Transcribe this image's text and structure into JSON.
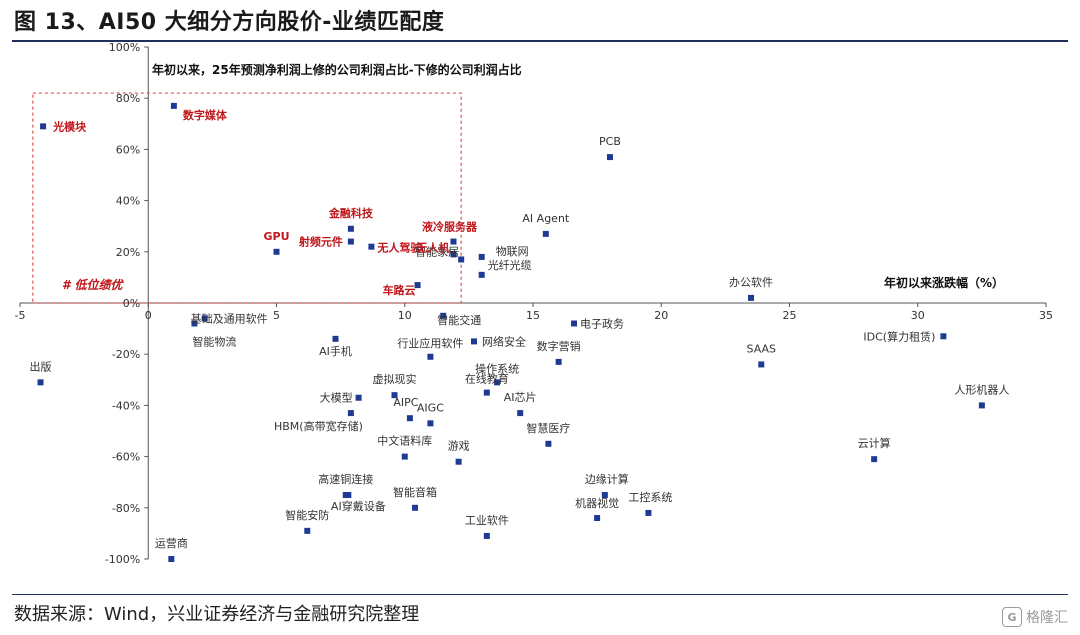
{
  "figure": {
    "title": "图 13、AI50 大细分方向股价-业绩匹配度",
    "source": "数据来源：Wind，兴业证券经济与金融研究院整理",
    "watermark": "格隆汇",
    "watermark_icon": "glh-logo-icon"
  },
  "chart_data": {
    "type": "scatter",
    "title": "",
    "ylabel": "年初以来，25年预测净利润上修的公司利润占比-下修的公司利润占比",
    "xlabel": "年初以来涨跌幅（%）",
    "xlim": [
      -5,
      35
    ],
    "ylim": [
      -100,
      100
    ],
    "xticks": [
      "-5",
      "0",
      "5",
      "10",
      "15",
      "20",
      "25",
      "30",
      "35"
    ],
    "yticks": [
      "100%",
      "80%",
      "60%",
      "40%",
      "20%",
      "0%",
      "-20%",
      "-40%",
      "-60%",
      "-80%",
      "-100%"
    ],
    "grid": false,
    "highlight_box": {
      "x": [
        -4.5,
        12.2
      ],
      "y": [
        0,
        82
      ],
      "label": "# 低位绩优",
      "color": "#e05050"
    },
    "colors": {
      "marker": "#1f3a93",
      "highlight_label": "#c0171b",
      "normal_label": "#333333"
    },
    "points": [
      {
        "name": "光模块",
        "x": -4.1,
        "y": 69,
        "highlight": true
      },
      {
        "name": "数字媒体",
        "x": 1.0,
        "y": 77,
        "highlight": true
      },
      {
        "name": "PCB",
        "x": 18.0,
        "y": 57,
        "highlight": false
      },
      {
        "name": "金融科技",
        "x": 7.9,
        "y": 29,
        "highlight": true
      },
      {
        "name": "GPU",
        "x": 5.0,
        "y": 20,
        "highlight": true
      },
      {
        "name": "射频元件",
        "x": 7.9,
        "y": 24,
        "highlight": true
      },
      {
        "name": "无人驾驶",
        "x": 8.7,
        "y": 22,
        "highlight": true
      },
      {
        "name": "液冷服务器",
        "x": 11.9,
        "y": 24,
        "highlight": true
      },
      {
        "name": "AI Agent",
        "x": 15.5,
        "y": 27,
        "highlight": false
      },
      {
        "name": "智能家居",
        "x": 12.2,
        "y": 17,
        "highlight": false
      },
      {
        "name": "光纤光缆",
        "x": 13.0,
        "y": 11,
        "highlight": false
      },
      {
        "name": "无人机",
        "x": 11.9,
        "y": 19,
        "highlight": true
      },
      {
        "name": "车路云",
        "x": 10.5,
        "y": 7,
        "highlight": true
      },
      {
        "name": "物联网",
        "x": 13.0,
        "y": 18,
        "highlight": false
      },
      {
        "name": "办公软件",
        "x": 23.5,
        "y": 2,
        "highlight": false
      },
      {
        "name": "智能交通",
        "x": 11.5,
        "y": -5,
        "highlight": false
      },
      {
        "name": "基础及通用软件",
        "x": 2.2,
        "y": -6,
        "highlight": false
      },
      {
        "name": "智能物流",
        "x": 1.8,
        "y": -8,
        "highlight": false
      },
      {
        "name": "IDC(算力租赁)",
        "x": 31.0,
        "y": -13,
        "highlight": false
      },
      {
        "name": "电子政务",
        "x": 16.6,
        "y": -8,
        "highlight": false
      },
      {
        "name": "AI手机",
        "x": 7.3,
        "y": -14,
        "highlight": false
      },
      {
        "name": "网络安全",
        "x": 12.7,
        "y": -15,
        "highlight": false
      },
      {
        "name": "行业应用软件",
        "x": 11.0,
        "y": -21,
        "highlight": false
      },
      {
        "name": "数字营销",
        "x": 16.0,
        "y": -23,
        "highlight": false
      },
      {
        "name": "SAAS",
        "x": 23.9,
        "y": -24,
        "highlight": false
      },
      {
        "name": "出版",
        "x": -4.2,
        "y": -31,
        "highlight": false
      },
      {
        "name": "操作系统",
        "x": 13.6,
        "y": -31,
        "highlight": false
      },
      {
        "name": "在线教育",
        "x": 13.2,
        "y": -35,
        "highlight": false
      },
      {
        "name": "虚拟现实",
        "x": 9.6,
        "y": -36,
        "highlight": false
      },
      {
        "name": "大模型",
        "x": 8.2,
        "y": -37,
        "highlight": false
      },
      {
        "name": "AI芯片",
        "x": 14.5,
        "y": -43,
        "highlight": false
      },
      {
        "name": "人形机器人",
        "x": 32.5,
        "y": -40,
        "highlight": false
      },
      {
        "name": "AIPC",
        "x": 10.2,
        "y": -45,
        "highlight": false
      },
      {
        "name": "AIGC",
        "x": 11.0,
        "y": -47,
        "highlight": false
      },
      {
        "name": "HBM(高带宽存储)",
        "x": 7.9,
        "y": -43,
        "highlight": false
      },
      {
        "name": "智慧医疗",
        "x": 15.6,
        "y": -55,
        "highlight": false
      },
      {
        "name": "中文语料库",
        "x": 10.0,
        "y": -60,
        "highlight": false
      },
      {
        "name": "游戏",
        "x": 12.1,
        "y": -62,
        "highlight": false
      },
      {
        "name": "云计算",
        "x": 28.3,
        "y": -61,
        "highlight": false
      },
      {
        "name": "边缘计算",
        "x": 17.8,
        "y": -75,
        "highlight": false
      },
      {
        "name": "高速铜连接",
        "x": 7.7,
        "y": -75,
        "highlight": false
      },
      {
        "name": "智能音箱",
        "x": 10.4,
        "y": -80,
        "highlight": false
      },
      {
        "name": "AI穿戴设备",
        "x": 7.8,
        "y": -75,
        "highlight": false
      },
      {
        "name": "机器视觉",
        "x": 17.5,
        "y": -84,
        "highlight": false
      },
      {
        "name": "工控系统",
        "x": 19.5,
        "y": -82,
        "highlight": false
      },
      {
        "name": "智能安防",
        "x": 6.2,
        "y": -89,
        "highlight": false
      },
      {
        "name": "工业软件",
        "x": 13.2,
        "y": -91,
        "highlight": false
      },
      {
        "name": "运营商",
        "x": 0.9,
        "y": -100,
        "highlight": false
      }
    ]
  }
}
